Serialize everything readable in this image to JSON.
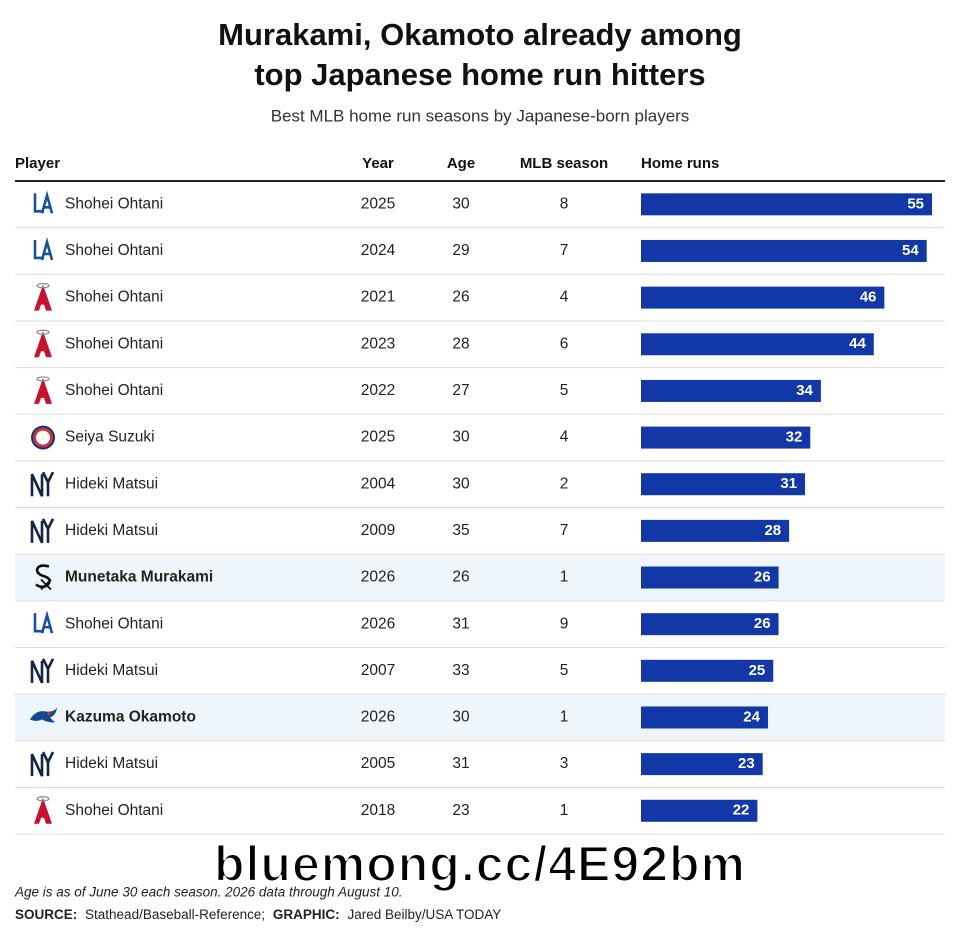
{
  "header": {
    "title": [
      "Murakami, Okamoto already among",
      "top Japanese home run hitters"
    ],
    "subtitle": "Best MLB home run seasons by Japanese-born players"
  },
  "table": {
    "columns": [
      "Player",
      "Year",
      "Age",
      "MLB season",
      "Home runs"
    ],
    "bar_color": "#1237a6",
    "rows": [
      {
        "player": "Shohei Ohtani",
        "year": 2025,
        "age": 30,
        "season": 8,
        "home_runs": 55
      },
      {
        "player": "Shohei Ohtani",
        "year": 2024,
        "age": 29,
        "season": 7,
        "home_runs": 54
      },
      {
        "player": "Shohei Ohtani",
        "year": 2021,
        "age": 26,
        "season": 4,
        "home_runs": 46
      },
      {
        "player": "Shohei Ohtani",
        "year": 2023,
        "age": 28,
        "season": 6,
        "home_runs": 44
      },
      {
        "player": "Shohei Ohtani",
        "year": 2022,
        "age": 27,
        "season": 5,
        "home_runs": 34
      },
      {
        "player": "Seiya Suzuki",
        "year": 2025,
        "age": 30,
        "season": 4,
        "home_runs": 32
      },
      {
        "player": "Hideki Matsui",
        "year": 2004,
        "age": 30,
        "season": 2,
        "home_runs": 31
      },
      {
        "player": "Hideki Matsui",
        "year": 2009,
        "age": 35,
        "season": 7,
        "home_runs": 28
      },
      {
        "player": "Munetaka Murakami",
        "year": 2026,
        "age": 26,
        "season": 1,
        "home_runs": 26,
        "highlight": true
      },
      {
        "player": "Shohei Ohtani",
        "year": 2026,
        "age": 31,
        "season": 9,
        "home_runs": 26
      },
      {
        "player": "Hideki Matsui",
        "year": 2007,
        "age": 33,
        "season": 5,
        "home_runs": 25
      },
      {
        "player": "Kazuma Okamoto",
        "year": 2026,
        "age": 30,
        "season": 1,
        "home_runs": 24,
        "highlight": true
      },
      {
        "player": "Hideki Matsui",
        "year": 2005,
        "age": 31,
        "season": 3,
        "home_runs": 23
      },
      {
        "player": "Shohei Ohtani",
        "year": 2018,
        "age": 23,
        "season": 1,
        "home_runs": 22
      }
    ]
  },
  "footer": {
    "note": "Age is as of June 30 each season. 2026 data through August 10.",
    "source_label": "SOURCE:",
    "source": "Stathead/Baseball-Reference;",
    "graphic_label": "GRAPHIC:",
    "graphic": "Jared Beilby/USA TODAY"
  },
  "watermark": "bluemong.cc/4E92bm"
}
